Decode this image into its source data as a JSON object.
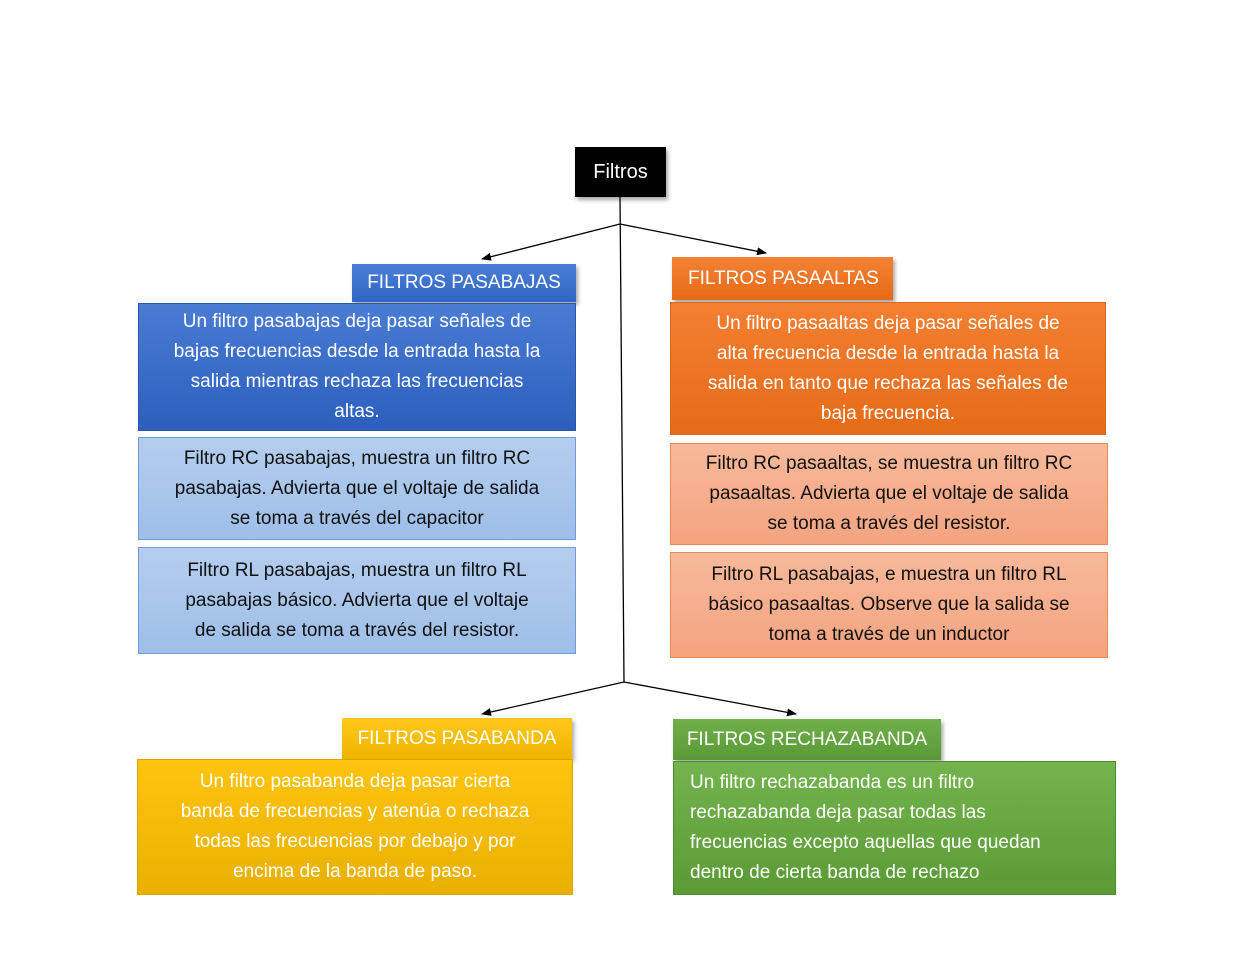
{
  "root": {
    "label": "Filtros"
  },
  "pasabajas": {
    "header": "FILTROS PASABAJAS",
    "description": "Un filtro pasabajas deja pasar señales de\nbajas frecuencias desde la entrada hasta la\nsalida mientras rechaza las frecuencias\naltas.",
    "rc": "Filtro RC pasabajas, muestra un filtro RC\npasabajas. Advierta que el voltaje de salida\nse toma a través del capacitor",
    "rl": "Filtro RL pasabajas, muestra un filtro RL\npasabajas básico. Advierta que el voltaje\nde salida se toma a través del resistor."
  },
  "pasaaltas": {
    "header": "FILTROS PASAALTAS",
    "description": "Un filtro pasaaltas deja pasar señales de\nalta frecuencia desde la entrada hasta la\nsalida en tanto que rechaza las señales de\nbaja frecuencia.",
    "rc": "Filtro RC pasaaltas, se muestra un filtro RC\npasaaltas. Advierta que el voltaje de salida\nse toma a través del resistor.",
    "rl": "Filtro RL pasabajas, e muestra un filtro RL\nbásico pasaaltas. Observe que la salida se\ntoma a través de un inductor"
  },
  "pasabanda": {
    "header": "FILTROS PASABANDA",
    "description": "Un filtro pasabanda deja pasar cierta\nbanda de frecuencias y atenúa o rechaza\ntodas las frecuencias por debajo y por\nencima de la banda de paso."
  },
  "rechazabanda": {
    "header": "FILTROS RECHAZABANDA",
    "description": "Un filtro rechazabanda es un filtro\nrechazabanda deja pasar todas las\nfrecuencias excepto aquellas que quedan\ndentro de cierta banda de rechazo"
  },
  "colors": {
    "blue": "#2f65c4",
    "light_blue": "#a8c6eb",
    "orange": "#ed7125",
    "light_orange": "#f5ad8c",
    "yellow": "#f5bb00",
    "green": "#63a53f",
    "root": "#000000"
  }
}
